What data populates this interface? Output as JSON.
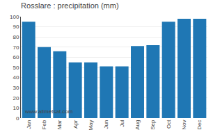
{
  "chart_data": {
    "type": "bar",
    "title": "Rosslare : precipitation (mm)",
    "categories": [
      "Jan",
      "Feb",
      "Mar",
      "Apr",
      "May",
      "Jun",
      "Jul",
      "Aug",
      "Sep",
      "Oct",
      "Nov",
      "Dec"
    ],
    "values": [
      95,
      70,
      66,
      55,
      55,
      51,
      51,
      71,
      72,
      95,
      98,
      98
    ],
    "ylim": [
      0,
      100
    ],
    "yticks": [
      0,
      10,
      20,
      30,
      40,
      50,
      60,
      70,
      80,
      90,
      100
    ],
    "grid": true,
    "annotations": [
      "www.allmetsat.com"
    ]
  }
}
